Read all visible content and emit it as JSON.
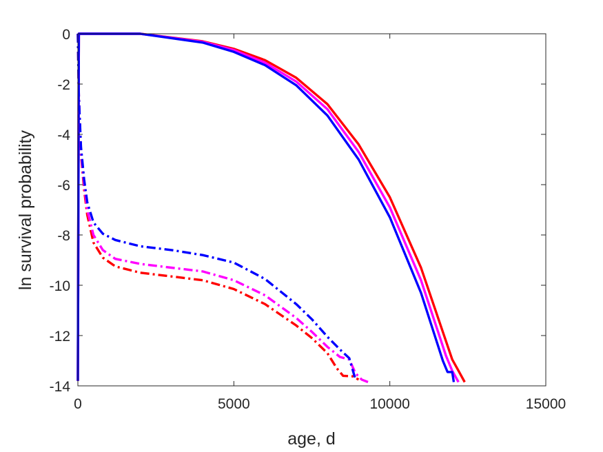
{
  "chart_data": {
    "type": "line",
    "title": "",
    "xlabel": "age, d",
    "ylabel": "ln survival probability",
    "xlim": [
      0,
      15000
    ],
    "ylim": [
      -14,
      0
    ],
    "xticks": [
      0,
      5000,
      10000,
      15000
    ],
    "yticks": [
      0,
      -2,
      -4,
      -6,
      -8,
      -10,
      -12,
      -14
    ],
    "xtick_labels": [
      "0",
      "5000",
      "10000",
      "15000"
    ],
    "ytick_labels": [
      "0",
      "-2",
      "-4",
      "-6",
      "-8",
      "-10",
      "-12",
      "-14"
    ],
    "grid": false,
    "legend": "none",
    "series": [
      {
        "color": "#ff0000",
        "style": "solid",
        "x": [
          0,
          30,
          2000,
          4000,
          5000,
          6000,
          7000,
          8000,
          9000,
          10000,
          11000,
          12000,
          12200,
          12400
        ],
        "y": [
          -13.8,
          0,
          0,
          -0.3,
          -0.6,
          -1.05,
          -1.75,
          -2.8,
          -4.4,
          -6.5,
          -9.3,
          -12.95,
          -13.4,
          -13.85
        ]
      },
      {
        "color": "#ff00ff",
        "style": "solid",
        "x": [
          0,
          30,
          2000,
          4000,
          5000,
          6000,
          7000,
          8000,
          9000,
          10000,
          11000,
          11800,
          12000,
          12200
        ],
        "y": [
          -13.8,
          0,
          0,
          -0.32,
          -0.65,
          -1.15,
          -1.9,
          -3.0,
          -4.7,
          -6.9,
          -9.8,
          -12.8,
          -13.4,
          -13.85
        ]
      },
      {
        "color": "#0000ff",
        "style": "solid",
        "x": [
          0,
          30,
          2000,
          4000,
          5000,
          6000,
          7000,
          8000,
          9000,
          10000,
          11000,
          11700,
          11850,
          12000,
          12050
        ],
        "y": [
          -13.8,
          0,
          0,
          -0.35,
          -0.72,
          -1.25,
          -2.05,
          -3.25,
          -5.0,
          -7.3,
          -10.3,
          -13.0,
          -13.45,
          -13.45,
          -13.85
        ]
      },
      {
        "color": "#ff0000",
        "style": "dashdot",
        "x": [
          0,
          30,
          100,
          200,
          300,
          500,
          800,
          1200,
          2000,
          3000,
          4000,
          5000,
          6000,
          7000,
          7500,
          8000,
          8300,
          8500,
          8800,
          9000
        ],
        "y": [
          0,
          -2.5,
          -4.8,
          -6.2,
          -7.2,
          -8.3,
          -8.9,
          -9.25,
          -9.5,
          -9.65,
          -9.8,
          -10.15,
          -10.75,
          -11.6,
          -12.1,
          -12.7,
          -13.3,
          -13.6,
          -13.62,
          -13.75
        ]
      },
      {
        "color": "#ff00ff",
        "style": "dashdot",
        "x": [
          0,
          30,
          100,
          200,
          300,
          500,
          800,
          1200,
          2000,
          3000,
          4000,
          5000,
          6000,
          7000,
          7500,
          8000,
          8400,
          8700,
          8900,
          9100,
          9300
        ],
        "y": [
          0,
          -2.5,
          -4.7,
          -6.0,
          -7.0,
          -8.0,
          -8.6,
          -8.95,
          -9.15,
          -9.3,
          -9.45,
          -9.8,
          -10.4,
          -11.3,
          -11.85,
          -12.45,
          -12.85,
          -12.95,
          -13.5,
          -13.75,
          -13.85
        ]
      },
      {
        "color": "#0000ff",
        "style": "dashdot",
        "x": [
          0,
          30,
          100,
          200,
          300,
          500,
          800,
          1200,
          2000,
          3000,
          4000,
          5000,
          6000,
          7000,
          7500,
          8000,
          8400,
          8700,
          8900
        ],
        "y": [
          0,
          -2.5,
          -4.5,
          -5.8,
          -6.7,
          -7.5,
          -7.95,
          -8.2,
          -8.45,
          -8.6,
          -8.8,
          -9.1,
          -9.75,
          -10.75,
          -11.35,
          -12.05,
          -12.55,
          -12.9,
          -13.75
        ]
      }
    ]
  }
}
